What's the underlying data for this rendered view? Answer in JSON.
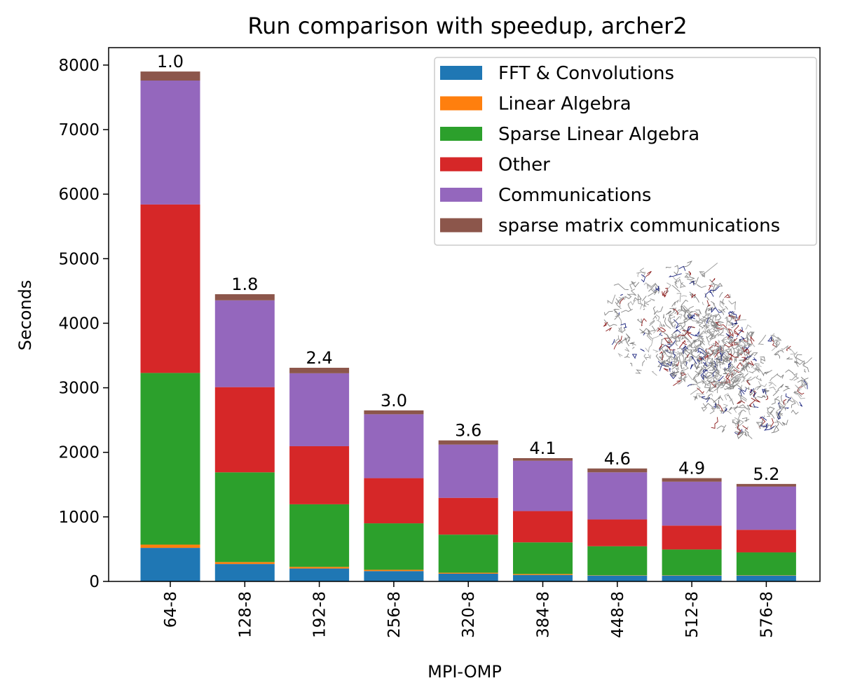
{
  "chart_data": {
    "type": "bar",
    "stacked": true,
    "title": "Run comparison with speedup, archer2",
    "xlabel": "MPI-OMP",
    "ylabel": "Seconds",
    "ylim": [
      0,
      8270
    ],
    "yticks": [
      0,
      1000,
      2000,
      3000,
      4000,
      5000,
      6000,
      7000,
      8000
    ],
    "categories": [
      "64-8",
      "128-8",
      "192-8",
      "256-8",
      "320-8",
      "384-8",
      "448-8",
      "512-8",
      "576-8"
    ],
    "series": [
      {
        "name": "FFT & Convolutions",
        "color": "#1f77b4",
        "values": [
          520,
          270,
          200,
          160,
          120,
          100,
          90,
          90,
          90
        ]
      },
      {
        "name": "Linear Algebra",
        "color": "#ff7f0e",
        "values": [
          50,
          30,
          25,
          20,
          15,
          15,
          5,
          5,
          5
        ]
      },
      {
        "name": "Sparse Linear Algebra",
        "color": "#2ca02c",
        "values": [
          2660,
          1390,
          970,
          720,
          590,
          490,
          450,
          400,
          355
        ]
      },
      {
        "name": "Other",
        "color": "#d62728",
        "values": [
          2610,
          1320,
          900,
          700,
          570,
          485,
          415,
          370,
          350
        ]
      },
      {
        "name": "Communications",
        "color": "#9467bd",
        "values": [
          1920,
          1345,
          1130,
          990,
          825,
          780,
          730,
          680,
          670
        ]
      },
      {
        "name": "sparse matrix communications",
        "color": "#8c564b",
        "values": [
          140,
          95,
          85,
          60,
          65,
          40,
          60,
          55,
          40
        ]
      }
    ],
    "speedup_labels": [
      "1.0",
      "1.8",
      "2.4",
      "3.0",
      "3.6",
      "4.1",
      "4.6",
      "4.9",
      "5.2"
    ],
    "legend_position": "top-right",
    "grid": false
  },
  "decorations": {
    "inset_image": "protein-structure-inset"
  }
}
